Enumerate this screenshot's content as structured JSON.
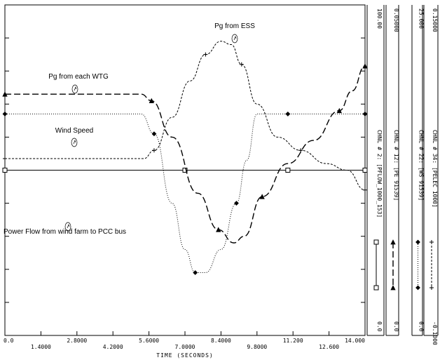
{
  "chart_data": {
    "type": "line",
    "xlabel": "TIME (SECONDS)",
    "xlim": [
      0.0,
      14.0
    ],
    "x_ticks_upper": [
      "0.0",
      "2.8000",
      "5.6000",
      "8.4000",
      "11.200",
      "14.000"
    ],
    "x_ticks_lower": [
      "1.4000",
      "4.2000",
      "7.0000",
      "9.8000",
      "12.600"
    ],
    "grid": false,
    "series": [
      {
        "name": "Power Flow from wind farm to PCC bus",
        "style": "solid",
        "marker": "square",
        "x": [
          0,
          5.5,
          6.0,
          7.0,
          8.0,
          9.5,
          11.0,
          13.0,
          14.0
        ],
        "y": [
          0.5,
          0.5,
          0.5,
          0.5,
          0.5,
          0.5,
          0.5,
          0.5,
          0.5
        ]
      },
      {
        "name": "Pg from each WTG",
        "style": "dashed",
        "marker": "triangle",
        "x": [
          0,
          3.0,
          5.3,
          5.7,
          6.5,
          7.5,
          8.3,
          8.9,
          9.3,
          10.0,
          11.0,
          12.0,
          13.0,
          13.5,
          14.0
        ],
        "y": [
          0.73,
          0.73,
          0.73,
          0.71,
          0.6,
          0.43,
          0.32,
          0.28,
          0.3,
          0.42,
          0.52,
          0.59,
          0.68,
          0.74,
          0.815
        ]
      },
      {
        "name": "Wind Speed",
        "style": "dotted",
        "marker": "diamond",
        "x": [
          0,
          3.5,
          5.3,
          5.8,
          6.5,
          7.0,
          7.4,
          7.8,
          8.4,
          9.0,
          9.4,
          9.8,
          11.0,
          14.0
        ],
        "y": [
          0.67,
          0.67,
          0.67,
          0.61,
          0.4,
          0.26,
          0.19,
          0.19,
          0.26,
          0.4,
          0.53,
          0.67,
          0.67,
          0.67
        ]
      },
      {
        "name": "Pg from ESS",
        "style": "dashed-fine",
        "marker": "plus",
        "x": [
          0,
          4.5,
          5.4,
          5.8,
          6.5,
          7.2,
          7.8,
          8.4,
          8.8,
          9.2,
          9.8,
          10.6,
          11.5,
          12.5,
          13.3,
          14.0
        ],
        "y": [
          0.535,
          0.535,
          0.535,
          0.56,
          0.66,
          0.77,
          0.85,
          0.89,
          0.88,
          0.82,
          0.7,
          0.6,
          0.56,
          0.52,
          0.5,
          0.44
        ]
      }
    ],
    "annotations": [
      {
        "text": "Pg from ESS",
        "series": 3
      },
      {
        "text": "Pg from each WTG",
        "series": 1
      },
      {
        "text": "Wind Speed",
        "series": 2
      },
      {
        "text": "Power Flow from wind farm to PCC bus",
        "series": 0
      }
    ],
    "channels": [
      {
        "label": "CHNL # 2: [PFLOW_1000_153]",
        "top": "100.00",
        "bottom": "0.0"
      },
      {
        "label": "CHNL # 12: [PE 91539]",
        "top": "0.05000",
        "bottom": "0.0"
      },
      {
        "label": "CHNL # 22: [WS 91539]",
        "top": "25.000",
        "bottom": "0.0"
      },
      {
        "label": "CHNL # 34: [PELEC 1000]",
        "top": "0.15000",
        "bottom": "-0.1000"
      }
    ]
  }
}
